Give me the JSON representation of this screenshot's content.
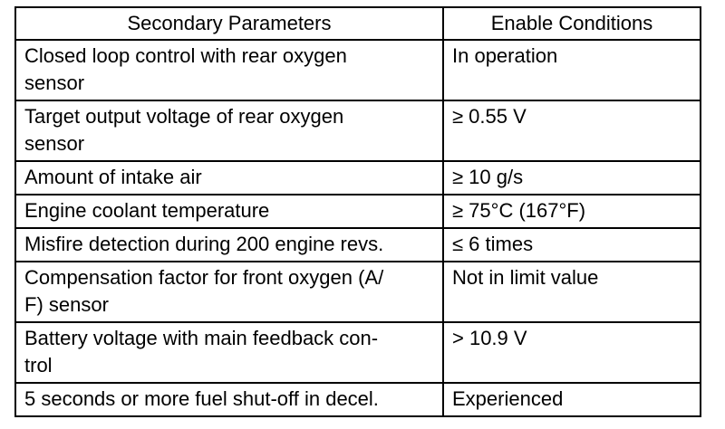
{
  "table": {
    "header": [
      "Secondary Parameters",
      "Enable Conditions"
    ],
    "rows": [
      [
        [
          "Closed loop control with rear oxygen",
          "sensor"
        ],
        [
          "In operation"
        ]
      ],
      [
        [
          "Target output voltage of rear oxygen",
          "sensor"
        ],
        [
          "≥ 0.55 V"
        ]
      ],
      [
        [
          "Amount of intake air"
        ],
        [
          "≥ 10 g/s"
        ]
      ],
      [
        [
          "Engine coolant temperature"
        ],
        [
          "≥ 75°C (167°F)"
        ]
      ],
      [
        [
          "Misfire detection during 200 engine revs."
        ],
        [
          "≤ 6 times"
        ]
      ],
      [
        [
          "Compensation factor for front oxygen (A/",
          "F) sensor"
        ],
        [
          "Not in limit value"
        ]
      ],
      [
        [
          "Battery voltage with main feedback con-",
          "trol"
        ],
        [
          "> 10.9 V"
        ]
      ],
      [
        [
          "5 seconds or more fuel shut-off in decel."
        ],
        [
          "Experienced"
        ]
      ]
    ]
  }
}
